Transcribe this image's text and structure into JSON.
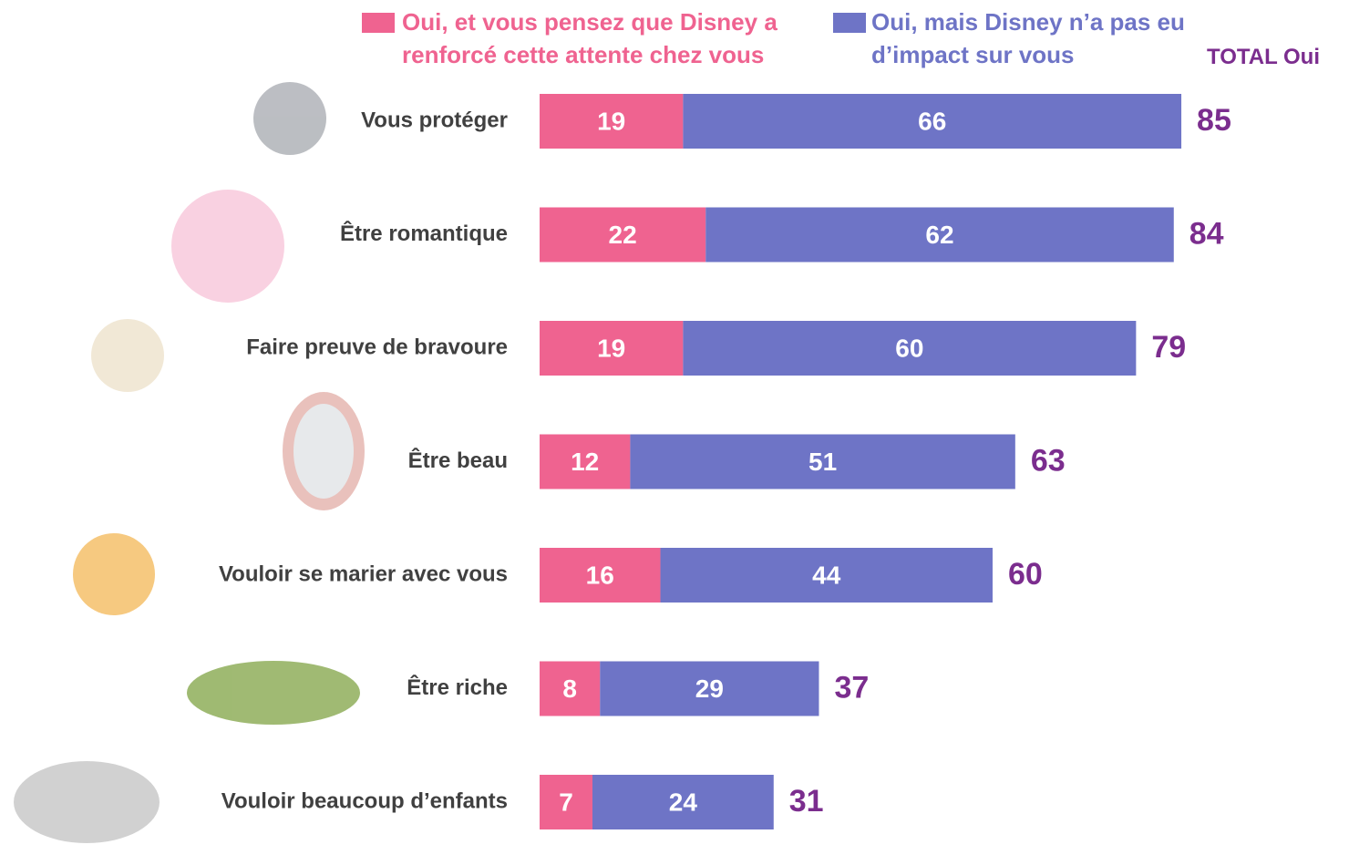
{
  "chart_data": {
    "type": "stacked-barh",
    "categories": [
      "Vous protéger",
      "Être romantique",
      "Faire preuve de bravoure",
      "Être beau",
      "Vouloir se marier avec vous",
      "Être riche",
      "Vouloir beaucoup d’enfants"
    ],
    "series": [
      {
        "name": "Oui, et vous pensez que Disney a renforcé cette attente chez vous",
        "color": "#ef6390",
        "values": [
          19,
          22,
          19,
          12,
          16,
          8,
          7
        ]
      },
      {
        "name": "Oui, mais Disney n’a pas eu d’impact sur vous",
        "color": "#6e74c6",
        "values": [
          66,
          62,
          60,
          51,
          44,
          29,
          24
        ]
      }
    ],
    "totals": {
      "name": "TOTAL Oui",
      "color": "#7b2d8e",
      "values": [
        85,
        84,
        79,
        63,
        60,
        37,
        31
      ]
    }
  }
}
